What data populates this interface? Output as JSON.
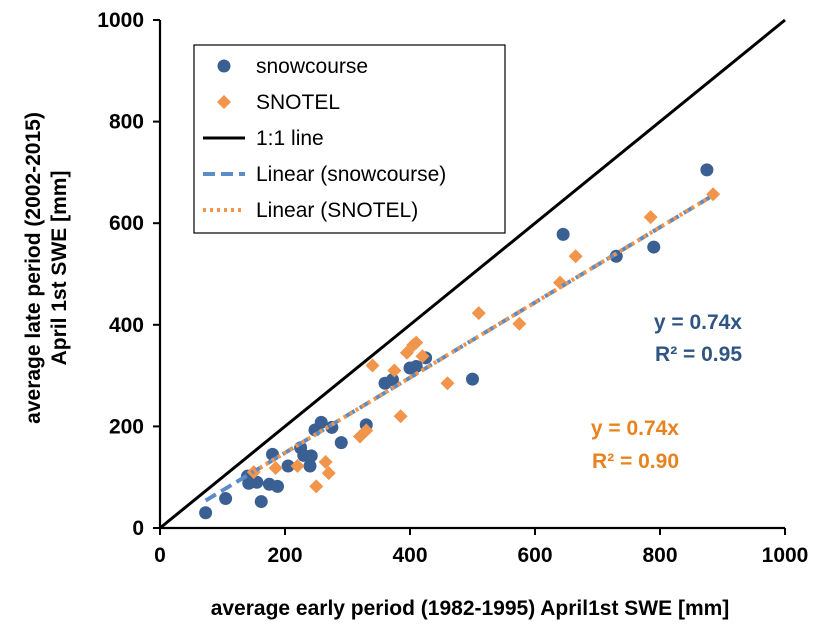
{
  "chart_data": {
    "type": "scatter",
    "xlabel": "average early period (1982-1995) April1st SWE [mm]",
    "ylabel_line1": "average late period (2002-2015)",
    "ylabel_line2": "April 1st SWE [mm]",
    "xlim": [
      0,
      1000
    ],
    "ylim": [
      0,
      1000
    ],
    "x_ticks": [
      "0",
      "200",
      "400",
      "600",
      "800",
      "1000"
    ],
    "y_ticks": [
      "0",
      "200",
      "400",
      "600",
      "800",
      "1000"
    ],
    "grid": false,
    "legend_position": "top-left",
    "series": [
      {
        "name": "snowcourse",
        "marker": "circle",
        "color": "#3A5F93",
        "points": [
          [
            73,
            30
          ],
          [
            105,
            58
          ],
          [
            140,
            102
          ],
          [
            142,
            88
          ],
          [
            155,
            90
          ],
          [
            162,
            52
          ],
          [
            175,
            86
          ],
          [
            180,
            145
          ],
          [
            188,
            82
          ],
          [
            205,
            122
          ],
          [
            225,
            158
          ],
          [
            230,
            143
          ],
          [
            240,
            122
          ],
          [
            242,
            142
          ],
          [
            248,
            193
          ],
          [
            258,
            208
          ],
          [
            275,
            198
          ],
          [
            290,
            168
          ],
          [
            330,
            203
          ],
          [
            360,
            285
          ],
          [
            372,
            292
          ],
          [
            400,
            315
          ],
          [
            410,
            318
          ],
          [
            425,
            335
          ],
          [
            500,
            293
          ],
          [
            645,
            578
          ],
          [
            730,
            535
          ],
          [
            790,
            553
          ],
          [
            875,
            705
          ]
        ]
      },
      {
        "name": "SNOTEL",
        "marker": "diamond",
        "color": "#F0954B",
        "points": [
          [
            150,
            110
          ],
          [
            185,
            118
          ],
          [
            220,
            122
          ],
          [
            250,
            82
          ],
          [
            265,
            130
          ],
          [
            270,
            108
          ],
          [
            320,
            180
          ],
          [
            330,
            192
          ],
          [
            340,
            320
          ],
          [
            375,
            310
          ],
          [
            385,
            220
          ],
          [
            395,
            345
          ],
          [
            405,
            360
          ],
          [
            410,
            365
          ],
          [
            420,
            338
          ],
          [
            460,
            285
          ],
          [
            510,
            423
          ],
          [
            575,
            402
          ],
          [
            640,
            483
          ],
          [
            665,
            535
          ],
          [
            785,
            612
          ],
          [
            885,
            657
          ]
        ]
      },
      {
        "name": "1:1 line",
        "style": "solid",
        "color": "#000000",
        "points": [
          [
            0,
            0
          ],
          [
            1000,
            1000
          ]
        ]
      },
      {
        "name": "Linear (snowcourse)",
        "style": "dashed",
        "color": "#5B8CC8",
        "slope": 0.74,
        "x_range": [
          73,
          880
        ]
      },
      {
        "name": "Linear (SNOTEL)",
        "style": "dotted",
        "color": "#F0954B",
        "slope": 0.74,
        "x_range": [
          150,
          888
        ]
      }
    ],
    "annotations": [
      {
        "series": "snowcourse",
        "line1": "y = 0.74x",
        "line2": "R² = 0.95",
        "color": "#2F5582"
      },
      {
        "series": "SNOTEL",
        "line1": "y = 0.74x",
        "line2": "R² = 0.90",
        "color": "#E8821E"
      }
    ]
  }
}
